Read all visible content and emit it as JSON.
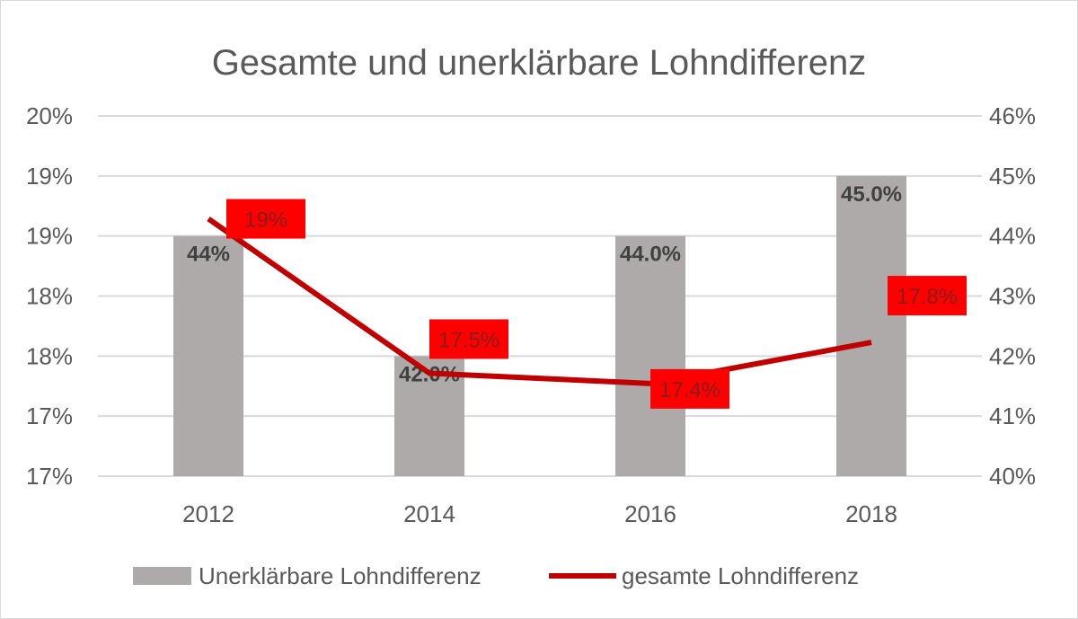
{
  "chart_data": {
    "type": "bar",
    "title": "Gesamte und unerklärbare Lohndifferenz",
    "categories": [
      "2012",
      "2014",
      "2016",
      "2018"
    ],
    "series": [
      {
        "name": "Unerklärbare Lohndifferenz",
        "kind": "bar",
        "axis": "right",
        "values": [
          44,
          42,
          44,
          45
        ],
        "data_labels": [
          "44%",
          "42.0%",
          "44.0%",
          "45.0%"
        ],
        "color": "#aeaaaa"
      },
      {
        "name": "gesamte Lohndifferenz",
        "kind": "line",
        "axis": "left",
        "values": [
          19.0,
          17.5,
          17.4,
          17.8
        ],
        "data_labels": [
          "19%",
          "17.5%",
          "17.4%",
          "17.8%"
        ],
        "color": "#c00000",
        "label_box_color": "#ff0000"
      }
    ],
    "left_axis": {
      "min": 16.5,
      "max": 20.0,
      "tick_labels": [
        "20%",
        "19%",
        "19%",
        "18%",
        "18%",
        "17%",
        "17%"
      ]
    },
    "right_axis": {
      "min": 40,
      "max": 46,
      "tick_labels": [
        "46%",
        "45%",
        "44%",
        "43%",
        "42%",
        "41%",
        "40%"
      ]
    },
    "grid": true,
    "legend": "bottom"
  }
}
